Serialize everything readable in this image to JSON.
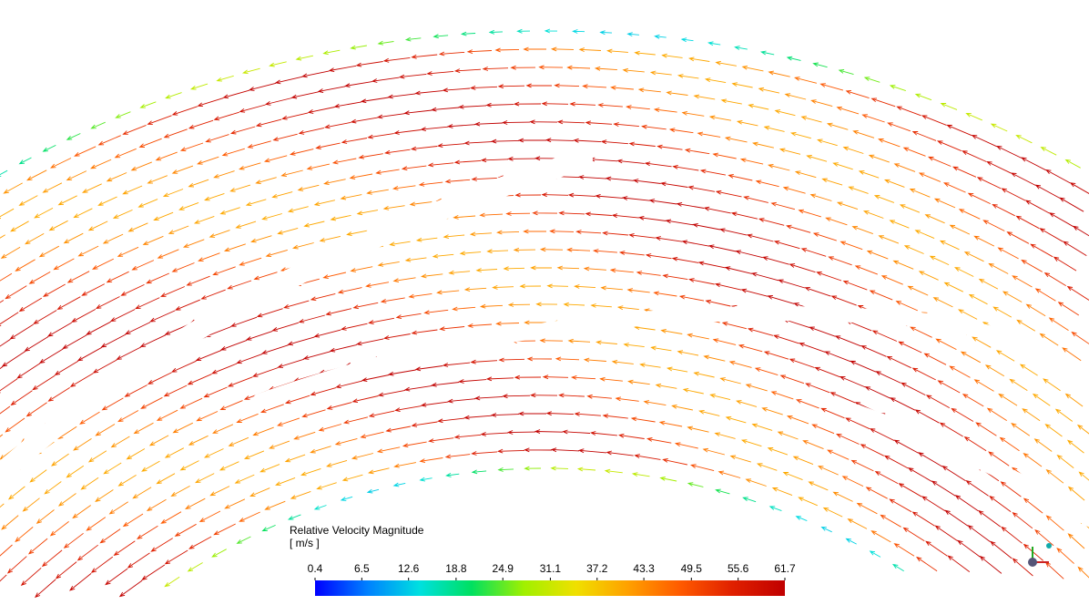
{
  "chart_data": {
    "type": "colorbar",
    "title": "Relative Velocity Magnitude",
    "unit": "[ m/s ]",
    "clim": [
      0.4,
      61.7
    ],
    "ticks": [
      0.4,
      6.5,
      12.6,
      18.8,
      24.9,
      31.1,
      37.2,
      43.3,
      49.5,
      55.6,
      61.7
    ],
    "colors": [
      "#0000ff",
      "#0080ff",
      "#00e0e0",
      "#00e060",
      "#a0f000",
      "#f0e000",
      "#ffa000",
      "#ff5a00",
      "#e02000",
      "#c00000"
    ]
  }
}
